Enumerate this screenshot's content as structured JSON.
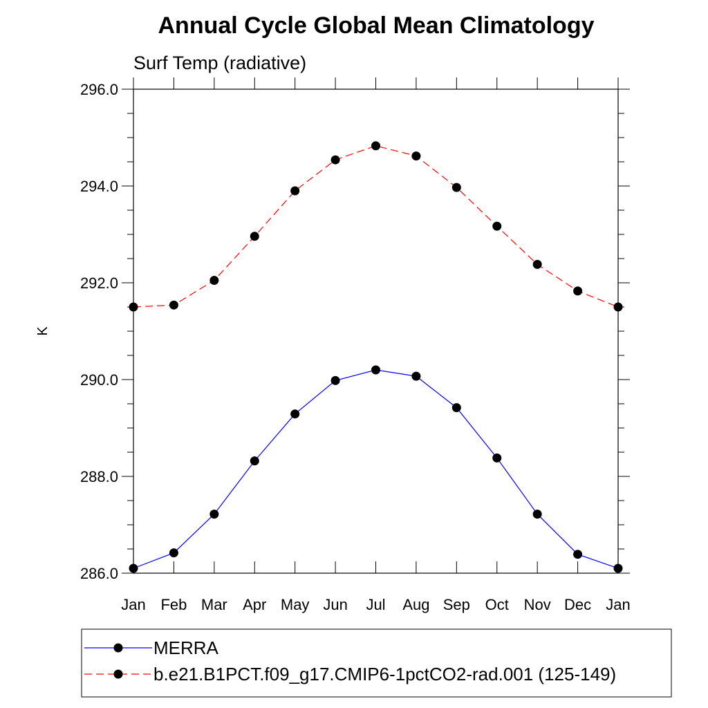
{
  "chart_data": {
    "type": "line",
    "title": "Annual Cycle Global Mean Climatology",
    "subtitle": "Surf Temp (radiative)",
    "xlabel": "",
    "ylabel": "K",
    "categories": [
      "Jan",
      "Feb",
      "Mar",
      "Apr",
      "May",
      "Jun",
      "Jul",
      "Aug",
      "Sep",
      "Oct",
      "Nov",
      "Dec",
      "Jan"
    ],
    "ylim": [
      286.0,
      296.0
    ],
    "yticks": [
      "286.0",
      "288.0",
      "290.0",
      "292.0",
      "294.0",
      "296.0"
    ],
    "series": [
      {
        "name": "MERRA",
        "color": "#0000ff",
        "dash": "solid",
        "values": [
          286.1,
          286.42,
          287.22,
          288.32,
          289.29,
          289.98,
          290.2,
          290.07,
          289.42,
          288.38,
          287.22,
          286.39,
          286.1
        ]
      },
      {
        "name": "b.e21.B1PCT.f09_g17.CMIP6-1pctCO2-rad.001 (125-149)",
        "color": "#ff0000",
        "dash": "dashed",
        "values": [
          291.5,
          291.54,
          292.05,
          292.96,
          293.9,
          294.54,
          294.83,
          294.62,
          293.97,
          293.17,
          292.38,
          291.83,
          291.5
        ]
      }
    ]
  }
}
